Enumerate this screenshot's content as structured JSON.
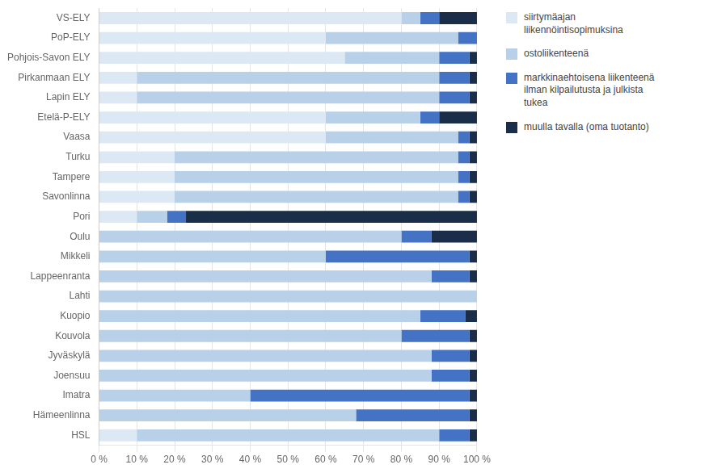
{
  "chart_data": {
    "type": "bar",
    "orientation": "horizontal",
    "stacked": true,
    "categories": [
      "VS-ELY",
      "PoP-ELY",
      "Pohjois-Savon ELY",
      "Pirkanmaan ELY",
      "Lapin ELY",
      "Etelä-P-ELY",
      "Vaasa",
      "Turku",
      "Tampere",
      "Savonlinna",
      "Pori",
      "Oulu",
      "Mikkeli",
      "Lappeenranta",
      "Lahti",
      "Kuopio",
      "Kouvola",
      "Jyväskylä",
      "Joensuu",
      "Imatra",
      "Hämeenlinna",
      "HSL"
    ],
    "series": [
      {
        "name": "siirtymäajan\nliikennöintisopimuksina",
        "color": "#dce9f5",
        "values": [
          80,
          60,
          65,
          10,
          10,
          60,
          60,
          20,
          20,
          20,
          10,
          0,
          0,
          0,
          0,
          0,
          0,
          0,
          0,
          0,
          0,
          10
        ]
      },
      {
        "name": "ostoliikenteenä",
        "color": "#b8d0e8",
        "values": [
          5,
          35,
          25,
          80,
          80,
          25,
          35,
          75,
          75,
          75,
          8,
          80,
          60,
          88,
          100,
          85,
          80,
          88,
          88,
          40,
          68,
          80
        ]
      },
      {
        "name": "markkinaehtoisena liikenteenä\nilman kilpailutusta ja julkista\ntukea",
        "color": "#4472c4",
        "values": [
          5,
          5,
          8,
          8,
          8,
          5,
          3,
          3,
          3,
          3,
          5,
          8,
          38,
          10,
          0,
          12,
          18,
          10,
          10,
          58,
          30,
          8
        ]
      },
      {
        "name": "muulla tavalla (oma tuotanto)",
        "color": "#1a2e4a",
        "values": [
          10,
          0,
          2,
          2,
          2,
          10,
          2,
          2,
          2,
          2,
          77,
          12,
          2,
          2,
          0,
          3,
          2,
          2,
          2,
          2,
          2,
          2
        ]
      }
    ],
    "xlim": [
      0,
      100
    ],
    "xticks": [
      {
        "value": 0,
        "label": "0 %"
      },
      {
        "value": 10,
        "label": "10 %"
      },
      {
        "value": 20,
        "label": "20 %"
      },
      {
        "value": 30,
        "label": "30 %"
      },
      {
        "value": 40,
        "label": "40 %"
      },
      {
        "value": 50,
        "label": "50 %"
      },
      {
        "value": 60,
        "label": "60 %"
      },
      {
        "value": 70,
        "label": "70 %"
      },
      {
        "value": 80,
        "label": "80 %"
      },
      {
        "value": 90,
        "label": "90 %"
      },
      {
        "value": 100,
        "label": "100 %"
      }
    ],
    "grid": true,
    "legend": "right"
  }
}
